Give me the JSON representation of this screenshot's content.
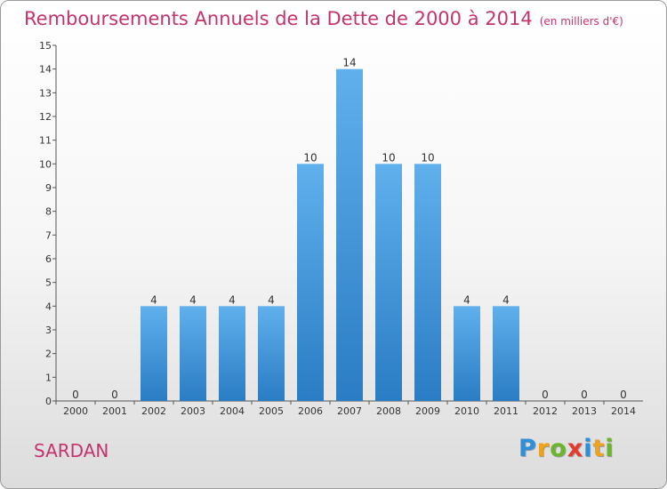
{
  "chart_data": {
    "type": "bar",
    "title": "Remboursements Annuels de la Dette de 2000 à 2014",
    "subtitle": "(en milliers d'€)",
    "categories": [
      "2000",
      "2001",
      "2002",
      "2003",
      "2004",
      "2005",
      "2006",
      "2007",
      "2008",
      "2009",
      "2010",
      "2011",
      "2012",
      "2013",
      "2014"
    ],
    "values": [
      0,
      0,
      4,
      4,
      4,
      4,
      10,
      14,
      10,
      10,
      4,
      4,
      0,
      0,
      0
    ],
    "ylim": [
      0,
      15
    ],
    "yticks": [
      0,
      1,
      2,
      3,
      4,
      5,
      6,
      7,
      8,
      9,
      10,
      11,
      12,
      13,
      14,
      15
    ],
    "grid": false,
    "bar_color": "#3e95dc"
  },
  "commune": "SARDAN",
  "brand": {
    "letters": [
      "P",
      "r",
      "o",
      "x",
      "i",
      "t",
      "i"
    ],
    "colors": [
      "#2f8fd8",
      "#f0a21a",
      "#6cb52e",
      "#e63a2e",
      "#2f8fd8",
      "#f0a21a",
      "#6cb52e"
    ]
  }
}
